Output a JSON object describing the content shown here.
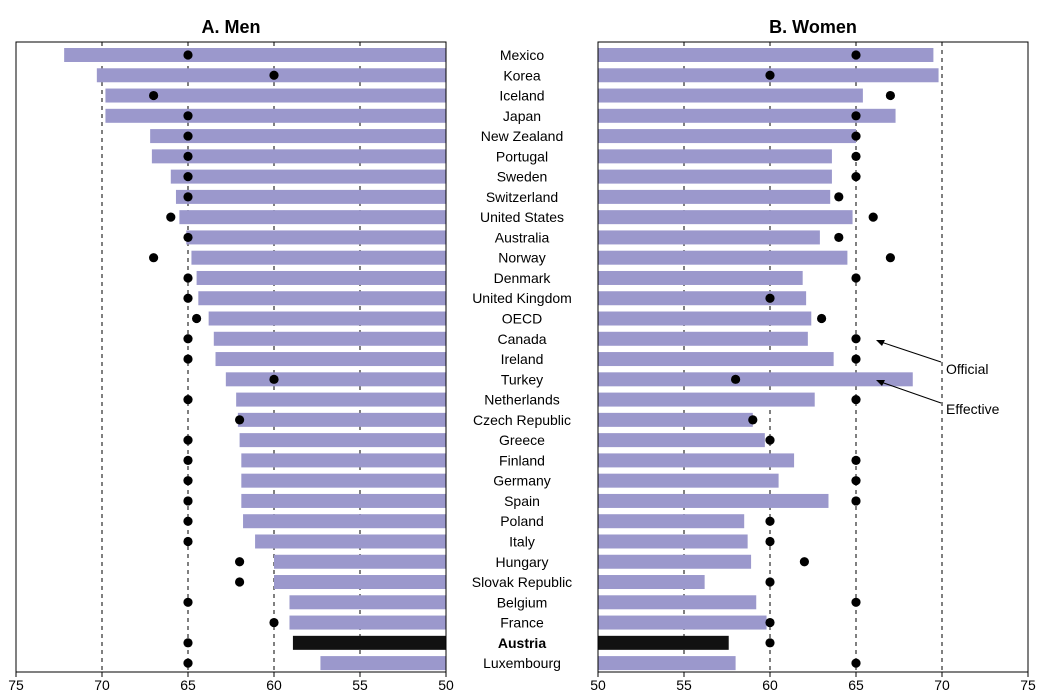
{
  "chart_data": {
    "type": "bar",
    "legend": {
      "official_label": "Official",
      "effective_label": "Effective"
    },
    "highlight": "Austria",
    "countries": [
      "Mexico",
      "Korea",
      "Iceland",
      "Japan",
      "New Zealand",
      "Portugal",
      "Sweden",
      "Switzerland",
      "United States",
      "Australia",
      "Norway",
      "Denmark",
      "United Kingdom",
      "OECD",
      "Canada",
      "Ireland",
      "Turkey",
      "Netherlands",
      "Czech Republic",
      "Greece",
      "Finland",
      "Germany",
      "Spain",
      "Poland",
      "Italy",
      "Hungary",
      "Slovak Republic",
      "Belgium",
      "France",
      "Austria",
      "Luxembourg"
    ],
    "panels": [
      {
        "title": "A. Men",
        "direction": "reversed",
        "xlim": [
          75,
          50
        ],
        "ticks": [
          75,
          70,
          65,
          60,
          55,
          50
        ],
        "gridlines": [
          70,
          65,
          60,
          55
        ],
        "effective": [
          72.2,
          70.3,
          69.8,
          69.8,
          67.2,
          67.1,
          66.0,
          65.7,
          65.5,
          65.1,
          64.8,
          64.5,
          64.4,
          63.8,
          63.5,
          63.4,
          62.8,
          62.2,
          62.1,
          62.0,
          61.9,
          61.9,
          61.9,
          61.8,
          61.1,
          60.0,
          60.0,
          59.1,
          59.1,
          58.9,
          57.3
        ],
        "official": [
          65,
          60,
          67,
          65,
          65,
          65,
          65,
          65,
          66,
          65,
          67,
          65,
          65,
          64.5,
          65,
          65,
          60,
          65,
          62,
          65,
          65,
          65,
          65,
          65,
          65,
          62,
          62,
          65,
          60,
          65,
          65
        ]
      },
      {
        "title": "B. Women",
        "direction": "normal",
        "xlim": [
          50,
          75
        ],
        "ticks": [
          50,
          55,
          60,
          65,
          70,
          75
        ],
        "gridlines": [
          55,
          60,
          65,
          70
        ],
        "effective": [
          69.5,
          69.8,
          65.4,
          67.3,
          65.0,
          63.6,
          63.6,
          63.5,
          64.8,
          62.9,
          64.5,
          61.9,
          62.1,
          62.4,
          62.2,
          63.7,
          68.3,
          62.6,
          59.0,
          59.7,
          61.4,
          60.5,
          63.4,
          58.5,
          58.7,
          58.9,
          56.2,
          59.2,
          59.8,
          57.6,
          58.0
        ],
        "official": [
          65,
          60,
          67,
          65,
          65,
          65,
          65,
          64,
          66,
          64,
          67,
          65,
          60,
          63,
          65,
          65,
          58,
          65,
          59,
          60,
          65,
          65,
          65,
          60,
          60,
          62,
          60,
          65,
          60,
          60,
          65
        ]
      }
    ]
  }
}
